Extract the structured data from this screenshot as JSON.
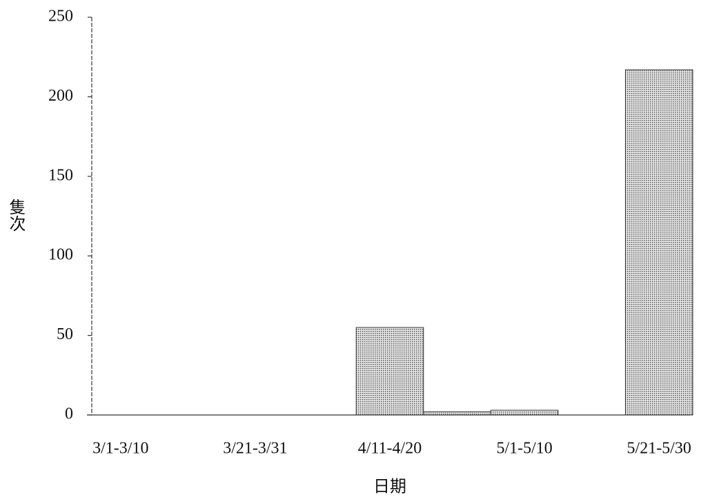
{
  "chart_data": {
    "type": "bar",
    "categories": [
      "3/1-3/10",
      null,
      "3/21-3/31",
      null,
      "4/11-4/20",
      null,
      "5/1-5/10",
      null,
      "5/21-5/30"
    ],
    "values": [
      0,
      0,
      0,
      0,
      55,
      2,
      3,
      0,
      217
    ],
    "color": "#b5b5b5",
    "ylim": [
      0,
      250
    ],
    "yticks": [
      0,
      50,
      100,
      150,
      200,
      250
    ],
    "xlabel": "日期",
    "ylabel": "隻次",
    "grid": false
  }
}
